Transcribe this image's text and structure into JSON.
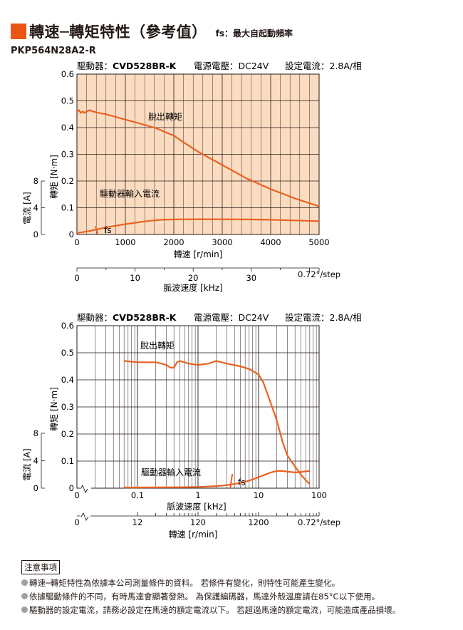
{
  "header": {
    "title": "轉速─轉矩特性（參考值）",
    "subtitle": "fs：最大自起動頻率",
    "model": "PKP564N28A2-R"
  },
  "colors": {
    "accent": "#ea5514",
    "curve": "#ea6120",
    "grid": "#231815",
    "bullet": "#9fa0a0"
  },
  "chart1": {
    "cond_driver_label": "驅動器：",
    "cond_driver_model": "CVD528BR-K",
    "cond_power": "電源電壓：DC24V",
    "cond_current": "設定電流：2.8A/相",
    "torque_axis_label": "轉矩 [N·m]",
    "current_axis_label": "電流 [A]",
    "x_axis_label": "轉速 [r/min]",
    "pulse_axis_label": "脈波速度 [kHz]",
    "pullout_label": "脫出轉矩",
    "current_curve_label": "驅動器輸入電流",
    "fs_label": "fs",
    "torque_ticks": [
      "0",
      "0.1",
      "0.2",
      "0.3",
      "0.4",
      "0.5",
      "0.6"
    ],
    "current_ticks": [
      "0",
      "4",
      "8"
    ],
    "x_ticks": [
      "0",
      "1000",
      "2000",
      "3000",
      "4000",
      "5000"
    ],
    "pulse_ticks": [
      "0",
      "10",
      "20",
      "30",
      "0.72°/step"
    ]
  },
  "chart2": {
    "cond_driver_label": "驅動器：",
    "cond_driver_model": "CVD528BR-K",
    "cond_power": "電源電壓：DC24V",
    "cond_current": "設定電流：2.8A/相",
    "torque_axis_label": "轉矩 [N·m]",
    "current_axis_label": "電流 [A]",
    "x_axis_label": "脈波速度 [kHz]",
    "speed_axis_label": "轉速 [r/min]",
    "pullout_label": "脫出轉矩",
    "current_curve_label": "驅動器輸入電流",
    "fs_label": "fs",
    "torque_ticks": [
      "0",
      "0.1",
      "0.2",
      "0.3",
      "0.4",
      "0.5",
      "0.6"
    ],
    "current_ticks": [
      "0",
      "4",
      "8"
    ],
    "x_ticks": [
      "0",
      "0.1",
      "1",
      "10",
      "100"
    ],
    "speed_ticks": [
      "0",
      "12",
      "120",
      "1200",
      "0.72°/step"
    ]
  },
  "chart_data": [
    {
      "type": "line",
      "xlabel": "轉速 [r/min]",
      "ylabel": "轉矩 [N·m]",
      "y2label": "電流 [A]",
      "xlim": [
        0,
        5000
      ],
      "ylim": [
        0,
        0.6
      ],
      "y2lim": [
        0,
        8
      ],
      "x2label": "脈波速度 [kHz]",
      "x2lim": [
        0,
        41.67
      ],
      "grid": true,
      "series": [
        {
          "name": "脫出轉矩",
          "axis": "torque",
          "x": [
            0,
            40,
            80,
            120,
            160,
            200,
            260,
            330,
            450,
            600,
            800,
            1000,
            1200,
            1400,
            1600,
            1800,
            2000,
            2200,
            2500,
            3000,
            3500,
            4000,
            4500,
            5000
          ],
          "y": [
            0.46,
            0.465,
            0.455,
            0.46,
            0.455,
            0.46,
            0.465,
            0.46,
            0.455,
            0.45,
            0.44,
            0.43,
            0.42,
            0.41,
            0.4,
            0.385,
            0.37,
            0.345,
            0.31,
            0.26,
            0.21,
            0.17,
            0.135,
            0.105
          ]
        },
        {
          "name": "驅動器輸入電流",
          "axis": "current",
          "x": [
            0,
            250,
            500,
            750,
            1000,
            1250,
            1500,
            1750,
            2000,
            2500,
            3000,
            3500,
            4000,
            4500,
            5000
          ],
          "y": [
            0.2,
            0.5,
            0.9,
            1.25,
            1.55,
            1.8,
            2.05,
            2.2,
            2.25,
            2.28,
            2.27,
            2.25,
            2.2,
            2.1,
            2.0
          ]
        }
      ],
      "fs_rpm": 400
    },
    {
      "type": "line",
      "xlabel": "脈波速度 [kHz]",
      "ylabel": "轉矩 [N·m]",
      "y2label": "電流 [A]",
      "xscale": "log",
      "xlim": [
        0.01,
        100
      ],
      "ylim": [
        0,
        0.6
      ],
      "y2lim": [
        0,
        8
      ],
      "x2label": "轉速 [r/min]",
      "grid": true,
      "series": [
        {
          "name": "脫出轉矩",
          "axis": "torque",
          "x": [
            0.06,
            0.1,
            0.15,
            0.2,
            0.25,
            0.3,
            0.35,
            0.4,
            0.45,
            0.5,
            0.7,
            1,
            1.5,
            2,
            3,
            5,
            7,
            10,
            12,
            15,
            20,
            25,
            30,
            40,
            50,
            60,
            70
          ],
          "y": [
            0.47,
            0.465,
            0.465,
            0.465,
            0.46,
            0.455,
            0.445,
            0.445,
            0.465,
            0.47,
            0.46,
            0.455,
            0.46,
            0.47,
            0.46,
            0.45,
            0.44,
            0.42,
            0.39,
            0.33,
            0.25,
            0.17,
            0.12,
            0.08,
            0.05,
            0.03,
            0.015
          ]
        },
        {
          "name": "驅動器輸入電流",
          "axis": "current",
          "x": [
            0.06,
            0.1,
            0.2,
            0.5,
            1,
            2,
            3,
            5,
            7,
            10,
            13,
            16,
            20,
            25,
            30,
            40,
            50,
            60,
            70
          ],
          "y": [
            0.1,
            0.1,
            0.11,
            0.13,
            0.18,
            0.3,
            0.45,
            0.75,
            1.1,
            1.6,
            2.0,
            2.3,
            2.5,
            2.5,
            2.4,
            2.3,
            2.35,
            2.45,
            2.5
          ]
        }
      ],
      "fs_khz": 3.5
    }
  ],
  "notes": {
    "title": "注意事項",
    "items": [
      "轉速─轉矩特性為依據本公司測量條件的資料。 若條件有變化，則特性可能產生變化。",
      "依據驅動條件的不同，有時馬達會顯著發熱。 為保護編碼器，馬達外殼溫度請在85°C以下使用。",
      "驅動器的設定電流，請務必設定在馬達的額定電流以下。 若超過馬達的額定電流，可能造成產品損壞。"
    ]
  }
}
